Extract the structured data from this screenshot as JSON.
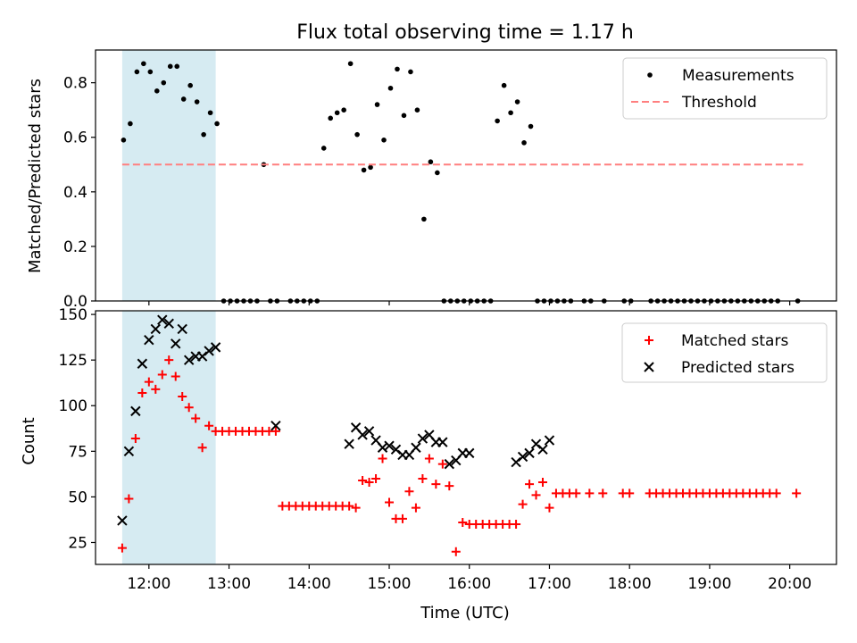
{
  "chart_data": [
    {
      "type": "scatter",
      "title": "Flux total observing time = 1.17 h",
      "xlabel": "",
      "ylabel": "Matched/Predicted stars",
      "xlim": [
        "11:20",
        "20:35"
      ],
      "ylim": [
        0,
        0.92
      ],
      "yticks": [
        0.0,
        0.2,
        0.4,
        0.6,
        0.8
      ],
      "ytick_labels": [
        "0.0",
        "0.2",
        "0.4",
        "0.6",
        "0.8"
      ],
      "grid": false,
      "legend": "top-right",
      "shaded_span": {
        "start": "11:40",
        "end": "12:50",
        "color": "#add8e6"
      },
      "series": [
        {
          "name": "Measurements",
          "marker": "dot",
          "color": "#000000",
          "x": [
            "11:41",
            "11:46",
            "11:51",
            "11:56",
            "12:01",
            "12:06",
            "12:11",
            "12:16",
            "12:21",
            "12:26",
            "12:31",
            "12:36",
            "12:41",
            "12:46",
            "12:51",
            "12:56",
            "13:01",
            "13:06",
            "13:11",
            "13:16",
            "13:21",
            "13:26",
            "13:31",
            "13:36",
            "13:46",
            "13:51",
            "13:56",
            "14:01",
            "14:06",
            "14:11",
            "14:16",
            "14:21",
            "14:26",
            "14:31",
            "14:36",
            "14:41",
            "14:46",
            "14:51",
            "14:56",
            "15:01",
            "15:06",
            "15:11",
            "15:16",
            "15:21",
            "15:26",
            "15:31",
            "15:36",
            "15:41",
            "15:46",
            "15:51",
            "15:56",
            "16:01",
            "16:06",
            "16:11",
            "16:16",
            "16:21",
            "16:26",
            "16:31",
            "16:36",
            "16:41",
            "16:46",
            "16:51",
            "16:56",
            "17:01",
            "17:06",
            "17:11",
            "17:16",
            "17:26",
            "17:31",
            "17:41",
            "17:56",
            "18:01",
            "18:16",
            "18:21",
            "18:26",
            "18:31",
            "18:36",
            "18:41",
            "18:46",
            "18:51",
            "18:56",
            "19:01",
            "19:06",
            "19:11",
            "19:16",
            "19:21",
            "19:26",
            "19:31",
            "19:36",
            "19:41",
            "19:46",
            "19:51",
            "20:06"
          ],
          "values": [
            0.59,
            0.65,
            0.84,
            0.87,
            0.84,
            0.77,
            0.8,
            0.86,
            0.86,
            0.74,
            0.79,
            0.73,
            0.61,
            0.69,
            0.65,
            0,
            0,
            0,
            0,
            0,
            0,
            0.5,
            0,
            0,
            0,
            0,
            0,
            0,
            0,
            0.56,
            0.67,
            0.69,
            0.7,
            0.87,
            0.61,
            0.48,
            0.49,
            0.72,
            0.59,
            0.78,
            0.85,
            0.68,
            0.84,
            0.7,
            0.3,
            0.51,
            0.47,
            0,
            0,
            0,
            0,
            0,
            0,
            0,
            0,
            0.66,
            0.79,
            0.69,
            0.73,
            0.58,
            0.64,
            0,
            0,
            0,
            0,
            0,
            0,
            0,
            0,
            0,
            0,
            0,
            0,
            0,
            0,
            0,
            0,
            0,
            0,
            0,
            0,
            0,
            0,
            0,
            0,
            0,
            0,
            0,
            0,
            0,
            0,
            0,
            0
          ]
        },
        {
          "name": "Threshold",
          "line": "dashed",
          "color": "#ff7f7f",
          "x": [
            "11:40",
            "20:10"
          ],
          "values": [
            0.5,
            0.5
          ]
        }
      ]
    },
    {
      "type": "scatter",
      "title": "",
      "xlabel": "Time (UTC)",
      "ylabel": "Count",
      "xlim": [
        "11:20",
        "20:35"
      ],
      "ylim": [
        13,
        152
      ],
      "yticks": [
        25,
        50,
        75,
        100,
        125,
        150
      ],
      "ytick_labels": [
        "25",
        "50",
        "75",
        "100",
        "125",
        "150"
      ],
      "xticks": [
        "12:00",
        "13:00",
        "14:00",
        "15:00",
        "16:00",
        "17:00",
        "18:00",
        "19:00",
        "20:00"
      ],
      "xtick_labels": [
        "12:00",
        "13:00",
        "14:00",
        "15:00",
        "16:00",
        "17:00",
        "18:00",
        "19:00",
        "20:00"
      ],
      "grid": false,
      "legend": "top-right",
      "shaded_span": {
        "start": "11:40",
        "end": "12:50",
        "color": "#add8e6"
      },
      "series": [
        {
          "name": "Matched stars",
          "marker": "plus",
          "color": "#ff0000",
          "x": [
            "11:40",
            "11:45",
            "11:50",
            "11:55",
            "12:00",
            "12:05",
            "12:10",
            "12:15",
            "12:20",
            "12:25",
            "12:30",
            "12:35",
            "12:40",
            "12:45",
            "12:50",
            "12:55",
            "13:00",
            "13:05",
            "13:10",
            "13:15",
            "13:20",
            "13:25",
            "13:30",
            "13:35",
            "13:40",
            "13:45",
            "13:50",
            "13:55",
            "14:00",
            "14:05",
            "14:10",
            "14:15",
            "14:20",
            "14:25",
            "14:30",
            "14:35",
            "14:40",
            "14:45",
            "14:50",
            "14:55",
            "15:00",
            "15:05",
            "15:10",
            "15:15",
            "15:20",
            "15:25",
            "15:30",
            "15:35",
            "15:40",
            "15:45",
            "15:50",
            "15:55",
            "16:00",
            "16:05",
            "16:10",
            "16:15",
            "16:20",
            "16:25",
            "16:30",
            "16:35",
            "16:40",
            "16:45",
            "16:50",
            "16:55",
            "17:00",
            "17:05",
            "17:10",
            "17:15",
            "17:20",
            "17:30",
            "17:40",
            "17:55",
            "18:00",
            "18:15",
            "18:20",
            "18:25",
            "18:30",
            "18:35",
            "18:40",
            "18:45",
            "18:50",
            "18:55",
            "19:00",
            "19:05",
            "19:10",
            "19:15",
            "19:20",
            "19:25",
            "19:30",
            "19:35",
            "19:40",
            "19:45",
            "19:50",
            "20:05"
          ],
          "values": [
            22,
            49,
            82,
            107,
            113,
            109,
            117,
            125,
            116,
            105,
            99,
            93,
            77,
            89,
            86,
            86,
            86,
            86,
            86,
            86,
            86,
            86,
            86,
            86,
            45,
            45,
            45,
            45,
            45,
            45,
            45,
            45,
            45,
            45,
            45,
            44,
            59,
            58,
            60,
            71,
            47,
            38,
            38,
            53,
            44,
            60,
            71,
            57,
            68,
            56,
            20,
            36,
            35,
            35,
            35,
            35,
            35,
            35,
            35,
            35,
            46,
            57,
            51,
            58,
            44,
            52,
            52,
            52,
            52,
            52,
            52,
            52,
            52,
            52,
            52,
            52,
            52,
            52,
            52,
            52,
            52,
            52,
            52,
            52,
            52,
            52,
            52,
            52,
            52,
            52,
            52,
            52,
            52,
            52
          ]
        },
        {
          "name": "Predicted stars",
          "marker": "x",
          "color": "#000000",
          "x": [
            "11:40",
            "11:45",
            "11:50",
            "11:55",
            "12:00",
            "12:05",
            "12:10",
            "12:15",
            "12:20",
            "12:25",
            "12:30",
            "12:35",
            "12:40",
            "12:45",
            "12:50",
            "13:35",
            "14:30",
            "14:35",
            "14:40",
            "14:45",
            "14:50",
            "14:55",
            "15:00",
            "15:05",
            "15:10",
            "15:15",
            "15:20",
            "15:25",
            "15:30",
            "15:35",
            "15:40",
            "15:45",
            "15:50",
            "15:55",
            "16:00",
            "16:35",
            "16:40",
            "16:45",
            "16:50",
            "16:55",
            "17:00"
          ],
          "values": [
            37,
            75,
            97,
            123,
            136,
            142,
            147,
            145,
            134,
            142,
            125,
            127,
            127,
            130,
            132,
            89,
            79,
            88,
            84,
            86,
            81,
            77,
            78,
            76,
            73,
            73,
            77,
            82,
            84,
            80,
            80,
            68,
            70,
            74,
            74,
            69,
            72,
            74,
            79,
            76,
            81
          ]
        }
      ]
    }
  ]
}
